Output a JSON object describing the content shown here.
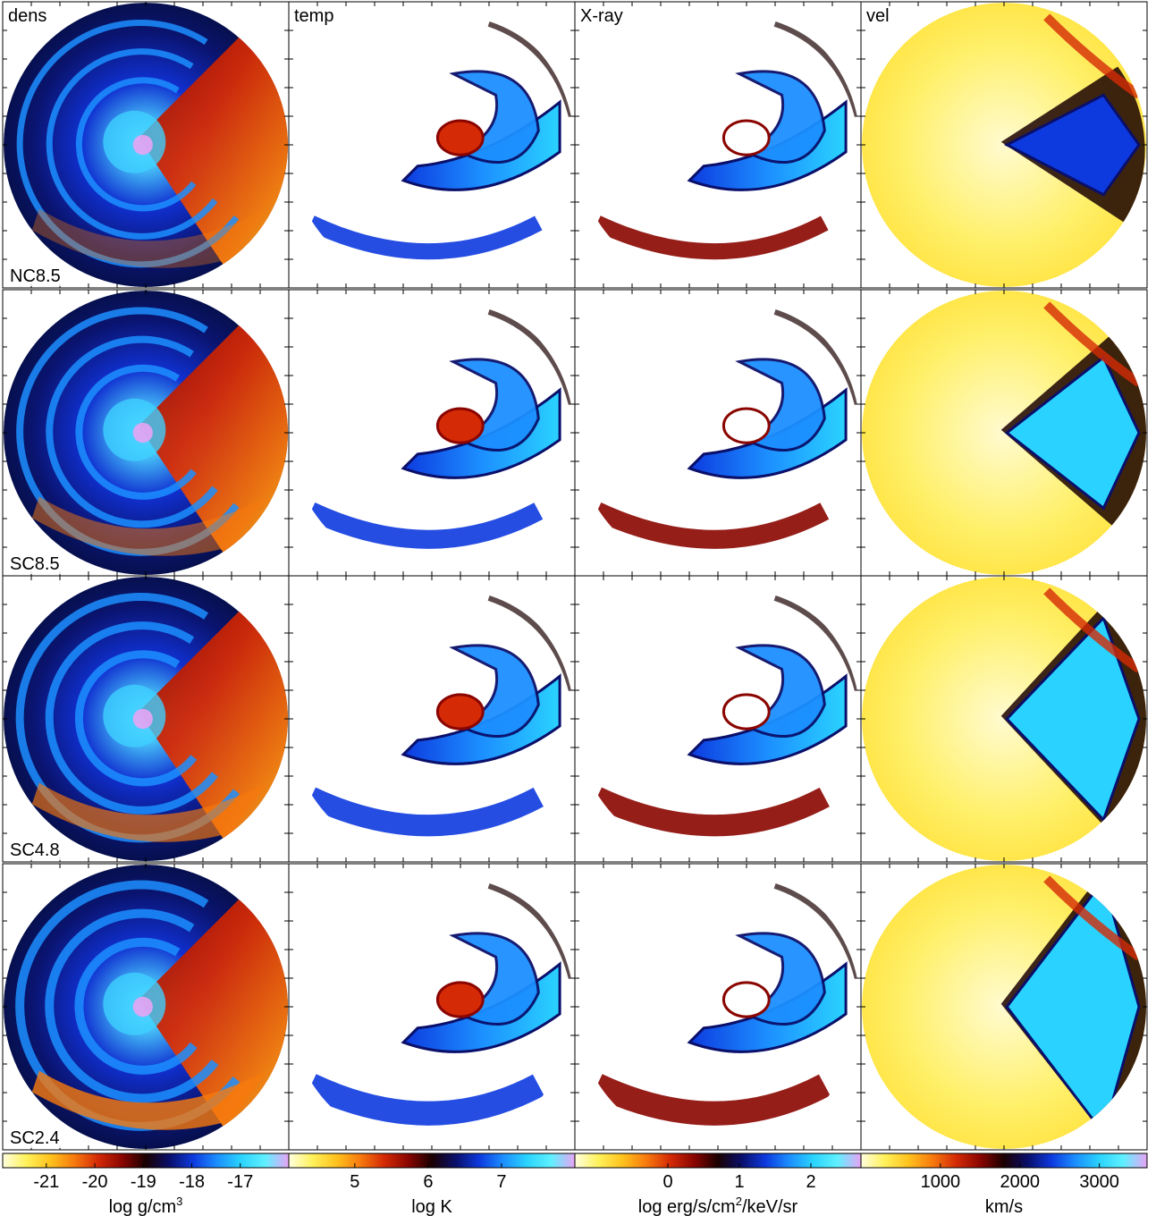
{
  "chart_data": {
    "type": "heatmap",
    "columns": [
      {
        "key": "dens",
        "label": "dens"
      },
      {
        "key": "temp",
        "label": "temp"
      },
      {
        "key": "xray",
        "label": "X-ray"
      },
      {
        "key": "vel",
        "label": "vel"
      }
    ],
    "rows": [
      {
        "label": "NC8.5"
      },
      {
        "label": "SC8.5"
      },
      {
        "label": "SC4.8"
      },
      {
        "label": "SC2.4"
      }
    ],
    "colorbars": [
      {
        "key": "dens",
        "unit": "log g/cm",
        "unit_sup": "3",
        "ticks": [
          -21,
          -20,
          -19,
          -18,
          -17
        ],
        "tick_labels": [
          "-21",
          "-20",
          "-19",
          "-18",
          "-17"
        ],
        "range": [
          -21.9,
          -16.0
        ],
        "scale": "linear"
      },
      {
        "key": "temp",
        "unit": "log K",
        "unit_sup": "",
        "ticks": [
          5,
          6,
          7
        ],
        "tick_labels": [
          "5",
          "6",
          "7"
        ],
        "range": [
          4.1,
          8.0
        ],
        "scale": "linear"
      },
      {
        "key": "xray",
        "unit": "log erg/s/cm",
        "unit_sup": "2",
        "unit_tail": "/keV/sr",
        "ticks": [
          0,
          1,
          2
        ],
        "tick_labels": [
          "0",
          "1",
          "2"
        ],
        "range": [
          -1.3,
          2.7
        ],
        "scale": "linear"
      },
      {
        "key": "vel",
        "unit": "km/s",
        "unit_sup": "",
        "ticks": [
          1000,
          2000,
          3000
        ],
        "tick_labels": [
          "1000",
          "2000",
          "3000"
        ],
        "range": [
          0,
          3600
        ],
        "scale": "linear"
      }
    ],
    "colormap": [
      "#ffffe0",
      "#fff15a",
      "#ffc21d",
      "#f77a0e",
      "#d42a06",
      "#8a0500",
      "#1a0000",
      "#0a0f6a",
      "#0d3adf",
      "#1c8fff",
      "#2ad3ff",
      "#5ff0ff",
      "#e7a4f4"
    ]
  }
}
